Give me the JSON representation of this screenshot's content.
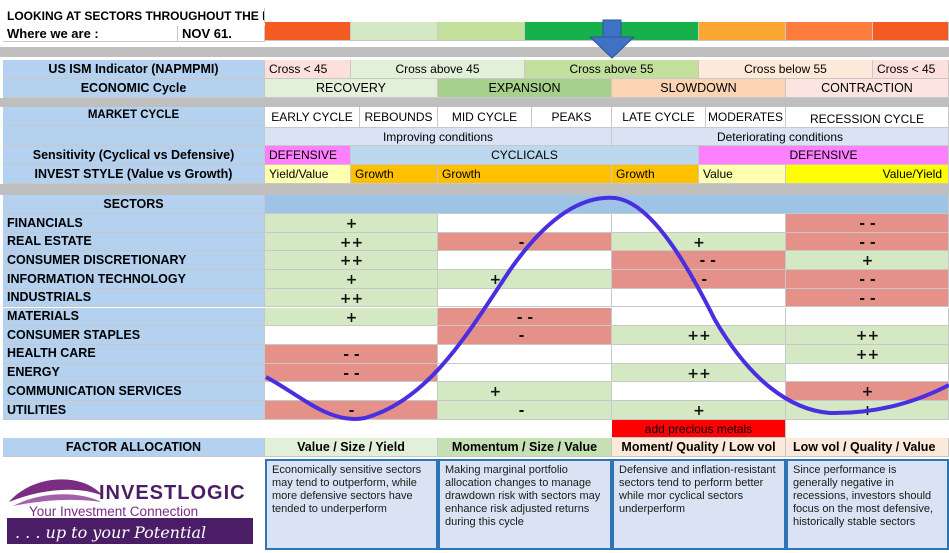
{
  "title": "LOOKING AT SECTORS THROUGHOUT THE BUSINESS CYCLE",
  "where_label": "Where we are :",
  "where_value": "NOV 61.",
  "ism": {
    "label": "US ISM Indicator (NAPMPMI)",
    "segments": [
      "Cross < 45",
      "Cross above 45",
      "Cross above 55",
      "Cross below 55",
      "Cross < 45"
    ]
  },
  "economic": {
    "label": "ECONOMIC Cycle",
    "phases": [
      "RECOVERY",
      "EXPANSION",
      "SLOWDOWN",
      "CONTRACTION"
    ]
  },
  "market": {
    "label": "MARKET CYCLE",
    "stages": [
      "EARLY CYCLE",
      "REBOUNDS",
      "MID CYCLE",
      "PEAKS",
      "LATE CYCLE",
      "MODERATES",
      "RECESSION CYCLE"
    ],
    "conditions": [
      "Improving conditions",
      "Deteriorating conditions"
    ]
  },
  "sensitivity": {
    "label": "Sensitivity (Cyclical vs Defensive)",
    "values": [
      "DEFENSIVE",
      "CYCLICALS",
      "DEFENSIVE"
    ]
  },
  "invest_style": {
    "label": "INVEST STYLE (Value vs Growth)",
    "values": [
      "Yield/Value",
      "Growth",
      "Growth",
      "Growth",
      "Value",
      "Value/Yield"
    ]
  },
  "sectors": {
    "header": "SECTORS",
    "rows": [
      {
        "name": "FINANCIALS",
        "ratings": [
          "+",
          "",
          "",
          "- -"
        ]
      },
      {
        "name": "REAL ESTATE",
        "ratings": [
          "++",
          "-",
          "+",
          "- -"
        ]
      },
      {
        "name": "CONSUMER DISCRETIONARY",
        "ratings": [
          "++",
          "",
          "- -",
          "+"
        ]
      },
      {
        "name": "INFORMATION TECHNOLOGY",
        "ratings": [
          "+",
          "+",
          "- -",
          "- -"
        ]
      },
      {
        "name": "INDUSTRIALS",
        "ratings": [
          "++",
          "",
          "",
          "- -"
        ]
      },
      {
        "name": "MATERIALS",
        "ratings": [
          "+",
          "- -",
          "",
          ""
        ]
      },
      {
        "name": "CONSUMER STAPLES",
        "ratings": [
          "",
          "-",
          "++",
          "++"
        ]
      },
      {
        "name": "HEALTH CARE",
        "ratings": [
          "- -",
          "",
          "",
          "++"
        ]
      },
      {
        "name": "ENERGY",
        "ratings": [
          "- -",
          "",
          "++",
          ""
        ]
      },
      {
        "name": "COMMUNICATION SERVICES",
        "ratings": [
          "",
          "+",
          "",
          "+"
        ]
      },
      {
        "name": "UTILITIES",
        "ratings": [
          "-",
          "-",
          "+",
          "+"
        ]
      }
    ],
    "note": "add precious metals"
  },
  "factor": {
    "label": "FACTOR ALLOCATION",
    "values": [
      "Value / Size / Yield",
      "Momentum / Size / Value",
      "Moment/ Quality / Low vol",
      "Low vol / Quality / Value"
    ]
  },
  "descriptions": [
    "Economically sensitive sectors may tend to outperform, while more defensive sectors have tended to underperform",
    "Making marginal portfolio allocation changes to manage drawdown risk with sectors may enhance risk adjusted returns during this cycle",
    "Defensive and inflation-resistant sectors tend to perform better while mor cyclical sectors underperform",
    "Since performance is generally negative in recessions, investors should focus on the most defensive, historically stable sectors"
  ],
  "logo": {
    "brand": "INVESTLOGIC",
    "tagline": "Your Investment Connection",
    "slogan": ". . . up to your Potential"
  },
  "colors": {
    "header_blue": "#b4d1f0",
    "green_light": "#d5e8c4",
    "red": "#e4918a",
    "orange": "#ffc000",
    "pink": "#ff80ff",
    "curve": "#4a2fe0"
  }
}
